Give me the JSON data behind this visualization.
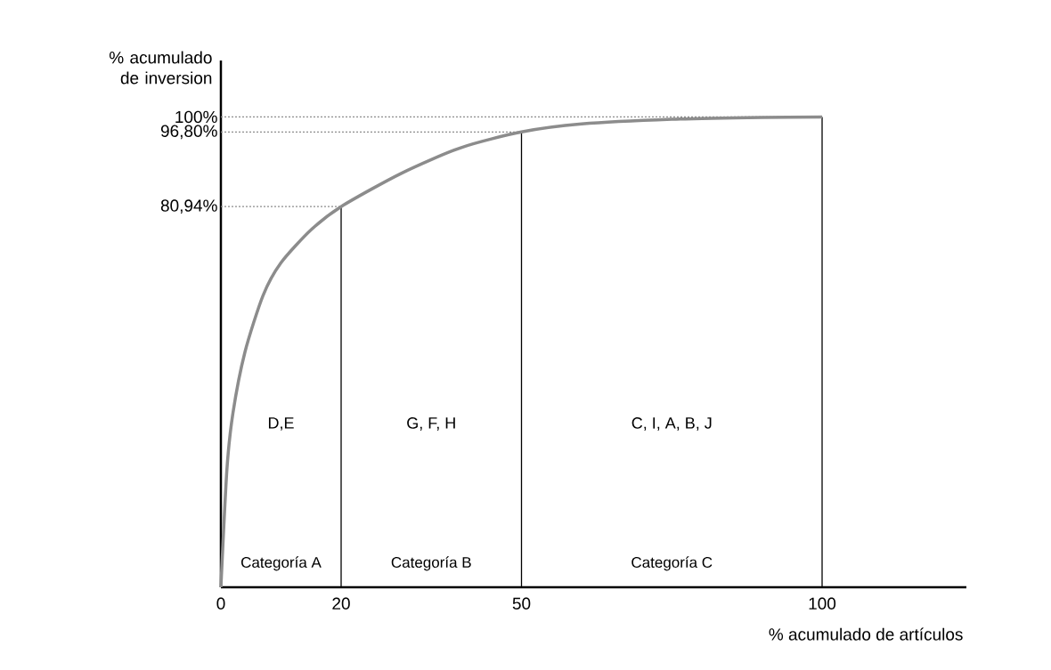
{
  "chart_data": {
    "type": "line",
    "xlabel": "% acumulado de artículos",
    "ylabel": "% acumulado de inversion",
    "x": [
      0,
      1,
      2,
      4,
      7,
      10,
      15,
      20,
      30,
      40,
      50,
      60,
      75,
      90,
      100
    ],
    "series": [
      {
        "color": "#8c8c8c",
        "values": [
          0,
          25,
          37,
          50,
          62,
          69,
          76,
          80.94,
          88,
          93.5,
          96.8,
          98.5,
          99.5,
          99.9,
          100
        ]
      }
    ],
    "xlim": [
      0,
      124
    ],
    "ylim": [
      0,
      112
    ],
    "xticks": [
      0,
      20,
      50,
      100
    ],
    "yticks": [
      {
        "value": 80.94,
        "label": "80,94%"
      },
      {
        "value": 96.8,
        "label": "96,80%"
      },
      {
        "value": 100,
        "label": "100%"
      }
    ],
    "ref_lines": [
      {
        "axis": "x",
        "value": 20,
        "color": "#000000",
        "line_style": "solid"
      },
      {
        "axis": "x",
        "value": 50,
        "color": "#000000",
        "line_style": "solid"
      },
      {
        "axis": "x",
        "value": 100,
        "color": "#000000",
        "line_style": "solid"
      },
      {
        "axis": "y",
        "value": 80.94,
        "color": "#8c8c8c",
        "line_style": "dotted"
      },
      {
        "axis": "y",
        "value": 96.8,
        "color": "#8c8c8c",
        "line_style": "dotted"
      },
      {
        "axis": "y",
        "value": 100,
        "color": "#8c8c8c",
        "line_style": "dotted"
      }
    ],
    "annotations": [
      "D,E",
      "G, F, H",
      "C, I, A, B, J",
      "Categoría A",
      "Categoría B",
      "Categoría C"
    ]
  }
}
